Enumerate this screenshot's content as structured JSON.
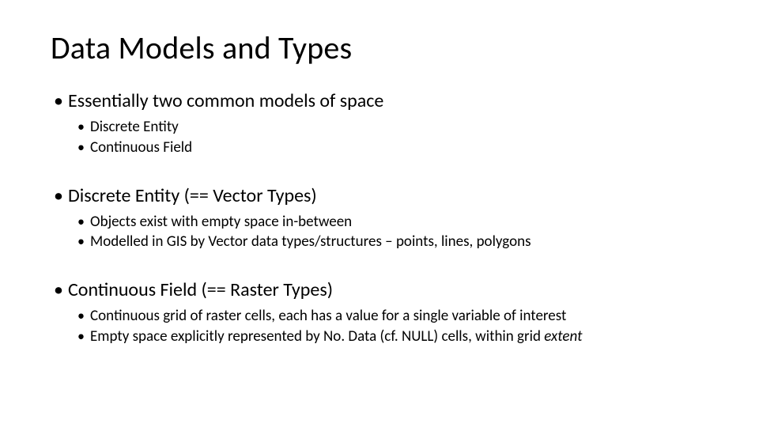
{
  "slide": {
    "title": "Data Models and Types",
    "title_fontsize": 40,
    "body_l1_fontsize": 24,
    "body_l2_fontsize": 19,
    "text_color": "#000000",
    "background_color": "#ffffff",
    "font_family": "Calibri",
    "blocks": [
      {
        "heading": "Essentially two common models of space",
        "items": [
          "Discrete Entity",
          "Continuous Field"
        ]
      },
      {
        "heading": "Discrete Entity (== Vector Types)",
        "items": [
          "Objects exist with empty space in-between",
          "Modelled in GIS by Vector data types/structures – points, lines, polygons"
        ]
      },
      {
        "heading": "Continuous Field (== Raster Types)",
        "items": [
          "Continuous grid of raster cells, each has a value for a single variable of interest",
          "Empty space explicitly represented by No. Data (cf. NULL) cells, within grid extent"
        ],
        "italic_tail_on_last_item": "extent"
      }
    ]
  }
}
